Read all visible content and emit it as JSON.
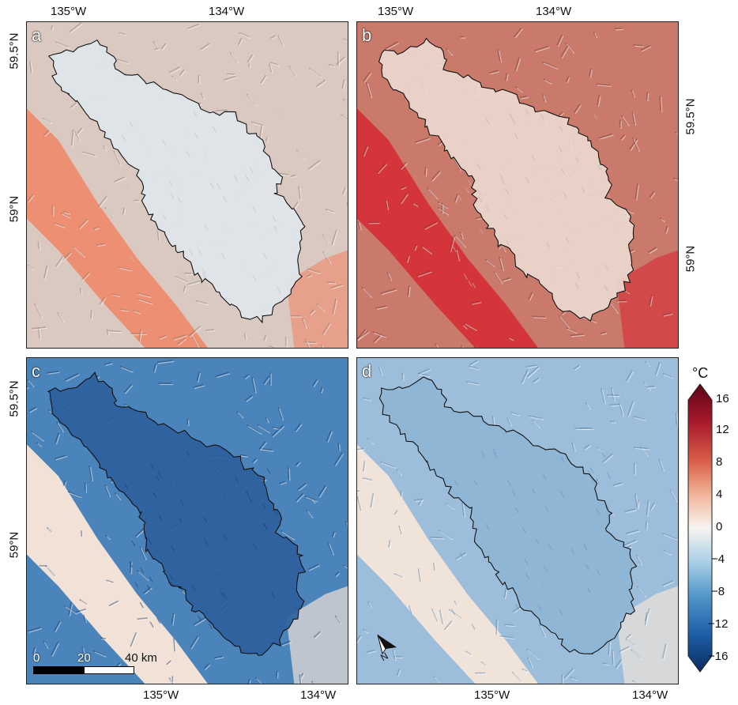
{
  "panels": [
    {
      "letter": "a",
      "theme": "warm-light"
    },
    {
      "letter": "b",
      "theme": "warm-strong"
    },
    {
      "letter": "c",
      "theme": "cold-strong"
    },
    {
      "letter": "d",
      "theme": "cold-light"
    }
  ],
  "axes": {
    "top_lon": [
      "135°W",
      "134°W",
      "135°W",
      "134°W"
    ],
    "bottom_lon": [
      "135°W",
      "134°W",
      "135°W",
      "134°W"
    ],
    "left_lat": [
      "59.5°N",
      "59°N",
      "59.5°N",
      "59°N"
    ],
    "right_lat": [
      "59.5°N",
      "59°N"
    ]
  },
  "scale_bar": {
    "labels": [
      "0",
      "20",
      "40 km"
    ]
  },
  "north_arrow": {
    "label": "N"
  },
  "colorbar": {
    "unit": "°C",
    "ticks": [
      "16",
      "12",
      "8",
      "4",
      "0",
      "−4",
      "−8",
      "−12",
      "−16"
    ],
    "min": -16,
    "max": 16,
    "colors": {
      "hot": "#6d0a1e",
      "warm": "#e58a6d",
      "neutral": "#f7f4f0",
      "cool": "#7fb2d6",
      "cold": "#0c2f66"
    }
  }
}
